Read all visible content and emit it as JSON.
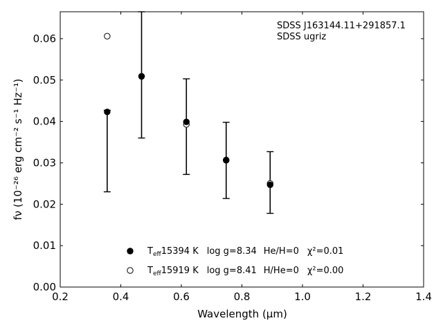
{
  "chart_data": {
    "type": "scatter",
    "xlabel": "Wavelength (μm)",
    "ylabel": "fν (10⁻²⁶ erg cm⁻² s⁻¹ Hz⁻¹)",
    "xlim": [
      0.2,
      1.4
    ],
    "ylim": [
      0.0,
      0.0665
    ],
    "x_ticks": [
      "0.2",
      "0.4",
      "0.6",
      "0.8",
      "1.0",
      "1.2",
      "1.4"
    ],
    "y_ticks": [
      "0.00",
      "0.01",
      "0.02",
      "0.03",
      "0.04",
      "0.05",
      "0.06"
    ],
    "annotation_lines": [
      "SDSS J163144.11+291857.1",
      "SDSS ugriz"
    ],
    "legend_placement": "bottom-center",
    "observed": {
      "x": [
        0.3551,
        0.4686,
        0.6166,
        0.748,
        0.8932
      ],
      "y": [
        0.0423,
        0.0509,
        0.0399,
        0.0307,
        0.0247
      ],
      "err_low": [
        0.023,
        0.036,
        0.0272,
        0.0214,
        0.0178
      ],
      "err_high": [
        0.0427,
        0.0665,
        0.0503,
        0.0398,
        0.0327
      ]
    },
    "series": [
      {
        "marker": "filled-circle",
        "teff": "15394 K",
        "logg": "log g=8.34",
        "comp": "He/H=0",
        "chi2": "χ²=0.01",
        "values": [
          0.0423,
          0.0509,
          0.0399,
          0.0307,
          0.0247
        ]
      },
      {
        "marker": "open-circle",
        "teff": "15919 K",
        "logg": "log g=8.41",
        "comp": "H/He=0",
        "chi2": "χ²=0.00",
        "values": [
          0.0606,
          0.0509,
          0.0393,
          0.0306,
          0.025
        ]
      }
    ]
  }
}
